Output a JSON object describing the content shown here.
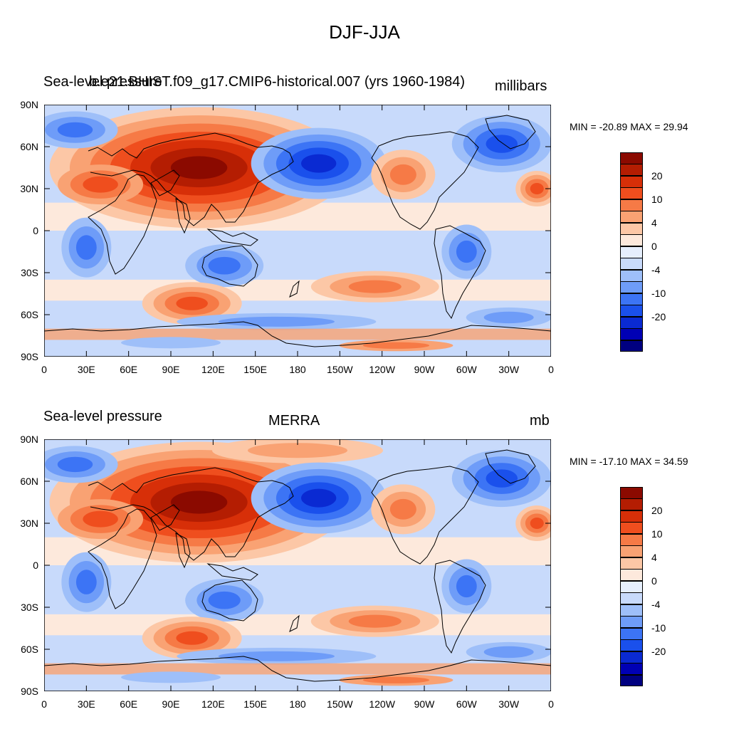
{
  "title": "DJF-JJA",
  "colors": [
    "#000080",
    "#0000b4",
    "#0a2ad2",
    "#1a50ec",
    "#3c74f5",
    "#6e9cf8",
    "#9ebff9",
    "#c8dafb",
    "#e6effd",
    "#fde9dc",
    "#fcc7a6",
    "#f9a273",
    "#f67a46",
    "#ef4e1e",
    "#d72f08",
    "#b41d02",
    "#8b0a00"
  ],
  "color_bins": [
    "<-25",
    "-25 to -20",
    "-20 to -15",
    "-15 to -10",
    "-10 to -7",
    "-7 to -4",
    "-4 to -2",
    "-2 to -1",
    "-1 to 0",
    "0 to 1",
    "1 to 2",
    "2 to 4",
    "4 to 7",
    "7 to 10",
    "10 to 15",
    "15 to 20",
    ">20"
  ],
  "panels": [
    {
      "left_title": "Sea-level pressure",
      "center_title": "b.e21.BHIST.f09_g17.CMIP6-historical.007 (yrs 1960-1984)",
      "right_title": "millibars",
      "minmax": "MIN = -20.89 MAX =  29.94",
      "colorbar_labels": [
        "20",
        "10",
        "4",
        "0",
        "-4",
        "-10",
        "-20"
      ]
    },
    {
      "left_title": "Sea-level pressure",
      "center_title": "MERRA",
      "right_title": "mb",
      "minmax": "MIN = -17.10 MAX =  34.59",
      "colorbar_labels": [
        "20",
        "10",
        "4",
        "0",
        "-4",
        "-10",
        "-20"
      ]
    }
  ],
  "lat_labels": [
    "90N",
    "60N",
    "30N",
    "0",
    "30S",
    "60S",
    "90S"
  ],
  "lon_labels": [
    "0",
    "30E",
    "60E",
    "90E",
    "120E",
    "150E",
    "180",
    "150W",
    "120W",
    "90W",
    "60W",
    "30W",
    "0"
  ],
  "chart_data": {
    "type": "heatmap",
    "x_range_deg_east": [
      0,
      360
    ],
    "y_range_deg": [
      -90,
      90
    ],
    "features": [
      {
        "name": "Siberian high",
        "lon": 105,
        "lat": 48,
        "value_mb": 25
      },
      {
        "name": "Aleutian low",
        "lon": 195,
        "lat": 48,
        "value_mb": -18
      },
      {
        "name": "Icelandic low",
        "lon": 325,
        "lat": 60,
        "value_mb": -12
      },
      {
        "name": "Australian low",
        "lon": 130,
        "lat": -25,
        "value_mb": -8
      },
      {
        "name": "South Indian Ocean high",
        "lon": 105,
        "lat": -50,
        "value_mb": 9
      },
      {
        "name": "South Pacific high",
        "lon": 240,
        "lat": -38,
        "value_mb": 5
      }
    ]
  }
}
